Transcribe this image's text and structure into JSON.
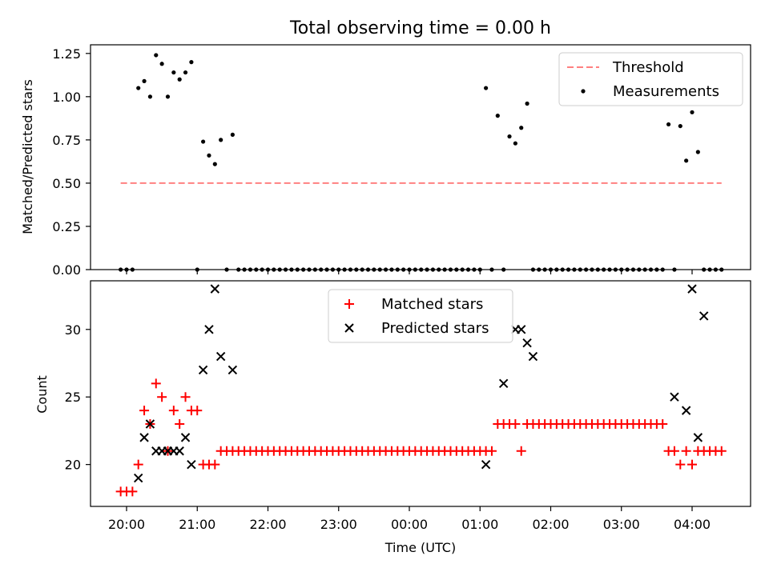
{
  "chart_data": [
    {
      "type": "scatter",
      "title": "Total observing time = 0.00 h",
      "xlabel": "",
      "ylabel": "Matched/Predicted stars",
      "ylim": [
        0,
        1.3
      ],
      "yticks": [
        0,
        0.25,
        0.5,
        0.75,
        1.0,
        1.25
      ],
      "ytick_labels": [
        "0.00",
        "0.25",
        "0.50",
        "0.75",
        "1.00",
        "1.25"
      ],
      "legend_placement": "top-right",
      "threshold": {
        "name": "Threshold",
        "value": 0.5,
        "x_start": "19:55",
        "x_end": "04:25",
        "color": "#ff8080"
      },
      "series": [
        {
          "name": "Measurements",
          "marker": "dot",
          "color": "#000000",
          "x": [
            "19:55",
            "20:00",
            "20:05",
            "20:10",
            "20:15",
            "20:20",
            "20:25",
            "20:30",
            "20:35",
            "20:40",
            "20:45",
            "20:50",
            "20:55",
            "21:00",
            "21:05",
            "21:10",
            "21:15",
            "21:20",
            "21:25",
            "21:30",
            "21:35",
            "21:40",
            "21:45",
            "21:50",
            "21:55",
            "22:00",
            "22:05",
            "22:10",
            "22:15",
            "22:20",
            "22:25",
            "22:30",
            "22:35",
            "22:40",
            "22:45",
            "22:50",
            "22:55",
            "23:00",
            "23:05",
            "23:10",
            "23:15",
            "23:20",
            "23:25",
            "23:30",
            "23:35",
            "23:40",
            "23:45",
            "23:50",
            "23:55",
            "00:00",
            "00:05",
            "00:10",
            "00:15",
            "00:20",
            "00:25",
            "00:30",
            "00:35",
            "00:40",
            "00:45",
            "00:50",
            "00:55",
            "01:00",
            "01:05",
            "01:10",
            "01:15",
            "01:20",
            "01:25",
            "01:30",
            "01:35",
            "01:40",
            "01:45",
            "01:50",
            "01:55",
            "02:00",
            "02:05",
            "02:10",
            "02:15",
            "02:20",
            "02:25",
            "02:30",
            "02:35",
            "02:40",
            "02:45",
            "02:50",
            "02:55",
            "03:00",
            "03:05",
            "03:10",
            "03:15",
            "03:20",
            "03:25",
            "03:30",
            "03:35",
            "03:40",
            "03:45",
            "03:50",
            "03:55",
            "04:00",
            "04:05",
            "04:10",
            "04:15",
            "04:20",
            "04:25"
          ],
          "values": [
            0,
            0,
            0,
            1.05,
            1.09,
            1.0,
            1.24,
            1.19,
            1.0,
            1.14,
            1.1,
            1.14,
            1.2,
            0,
            0.74,
            0.66,
            0.61,
            0.75,
            0,
            0.78,
            0,
            0,
            0,
            0,
            0,
            0,
            0,
            0,
            0,
            0,
            0,
            0,
            0,
            0,
            0,
            0,
            0,
            0,
            0,
            0,
            0,
            0,
            0,
            0,
            0,
            0,
            0,
            0,
            0,
            0,
            0,
            0,
            0,
            0,
            0,
            0,
            0,
            0,
            0,
            0,
            0,
            0,
            1.05,
            0,
            0.89,
            0,
            0.77,
            0.73,
            0.82,
            0.96,
            0,
            0,
            0,
            0,
            0,
            0,
            0,
            0,
            0,
            0,
            0,
            0,
            0,
            0,
            0,
            0,
            0,
            0,
            0,
            0,
            0,
            0,
            0,
            0.84,
            0,
            0.83,
            0.63,
            0.91,
            0.68,
            0,
            0,
            0,
            0
          ]
        }
      ]
    },
    {
      "type": "scatter",
      "title": "",
      "xlabel": "Time (UTC)",
      "ylabel": "Count",
      "ylim": [
        16.9,
        33.6
      ],
      "yticks": [
        20,
        25,
        30
      ],
      "ytick_labels": [
        "20",
        "25",
        "30"
      ],
      "xtick_labels": [
        "20:00",
        "21:00",
        "22:00",
        "23:00",
        "00:00",
        "01:00",
        "02:00",
        "03:00",
        "04:00"
      ],
      "legend_placement": "top-center",
      "series": [
        {
          "name": "Matched stars",
          "marker": "plus",
          "color": "#ff0000",
          "x": [
            "19:55",
            "20:00",
            "20:05",
            "20:10",
            "20:15",
            "20:20",
            "20:25",
            "20:30",
            "20:35",
            "20:40",
            "20:45",
            "20:50",
            "20:55",
            "21:00",
            "21:05",
            "21:10",
            "21:15",
            "21:20",
            "21:25",
            "21:30",
            "21:35",
            "21:40",
            "21:45",
            "21:50",
            "21:55",
            "22:00",
            "22:05",
            "22:10",
            "22:15",
            "22:20",
            "22:25",
            "22:30",
            "22:35",
            "22:40",
            "22:45",
            "22:50",
            "22:55",
            "23:00",
            "23:05",
            "23:10",
            "23:15",
            "23:20",
            "23:25",
            "23:30",
            "23:35",
            "23:40",
            "23:45",
            "23:50",
            "23:55",
            "00:00",
            "00:05",
            "00:10",
            "00:15",
            "00:20",
            "00:25",
            "00:30",
            "00:35",
            "00:40",
            "00:45",
            "00:50",
            "00:55",
            "01:00",
            "01:05",
            "01:10",
            "01:15",
            "01:20",
            "01:25",
            "01:30",
            "01:35",
            "01:40",
            "01:45",
            "01:50",
            "01:55",
            "02:00",
            "02:05",
            "02:10",
            "02:15",
            "02:20",
            "02:25",
            "02:30",
            "02:35",
            "02:40",
            "02:45",
            "02:50",
            "02:55",
            "03:00",
            "03:05",
            "03:10",
            "03:15",
            "03:20",
            "03:25",
            "03:30",
            "03:35",
            "03:40",
            "03:45",
            "03:50",
            "03:55",
            "04:00",
            "04:05",
            "04:10",
            "04:15",
            "04:20",
            "04:25"
          ],
          "values": [
            18,
            18,
            18,
            20,
            24,
            23,
            26,
            25,
            21,
            24,
            23,
            25,
            24,
            24,
            20,
            20,
            20,
            21,
            21,
            21,
            21,
            21,
            21,
            21,
            21,
            21,
            21,
            21,
            21,
            21,
            21,
            21,
            21,
            21,
            21,
            21,
            21,
            21,
            21,
            21,
            21,
            21,
            21,
            21,
            21,
            21,
            21,
            21,
            21,
            21,
            21,
            21,
            21,
            21,
            21,
            21,
            21,
            21,
            21,
            21,
            21,
            21,
            21,
            21,
            23,
            23,
            23,
            23,
            21,
            23,
            23,
            23,
            23,
            23,
            23,
            23,
            23,
            23,
            23,
            23,
            23,
            23,
            23,
            23,
            23,
            23,
            23,
            23,
            23,
            23,
            23,
            23,
            23,
            21,
            21,
            20,
            21,
            20,
            21,
            21,
            21,
            21,
            21
          ]
        },
        {
          "name": "Predicted stars",
          "marker": "x",
          "color": "#000000",
          "x": [
            "20:10",
            "20:15",
            "20:20",
            "20:25",
            "20:30",
            "20:35",
            "20:40",
            "20:45",
            "20:50",
            "20:55",
            "21:05",
            "21:10",
            "21:15",
            "21:20",
            "21:30",
            "01:05",
            "01:20",
            "01:30",
            "01:35",
            "01:40",
            "01:45",
            "03:45",
            "03:55",
            "04:00",
            "04:05",
            "04:10"
          ],
          "values": [
            19,
            22,
            23,
            21,
            21,
            21,
            21,
            21,
            22,
            20,
            27,
            30,
            33,
            28,
            27,
            20,
            26,
            30,
            30,
            29,
            28,
            25,
            24,
            33,
            22,
            31
          ]
        }
      ]
    }
  ]
}
